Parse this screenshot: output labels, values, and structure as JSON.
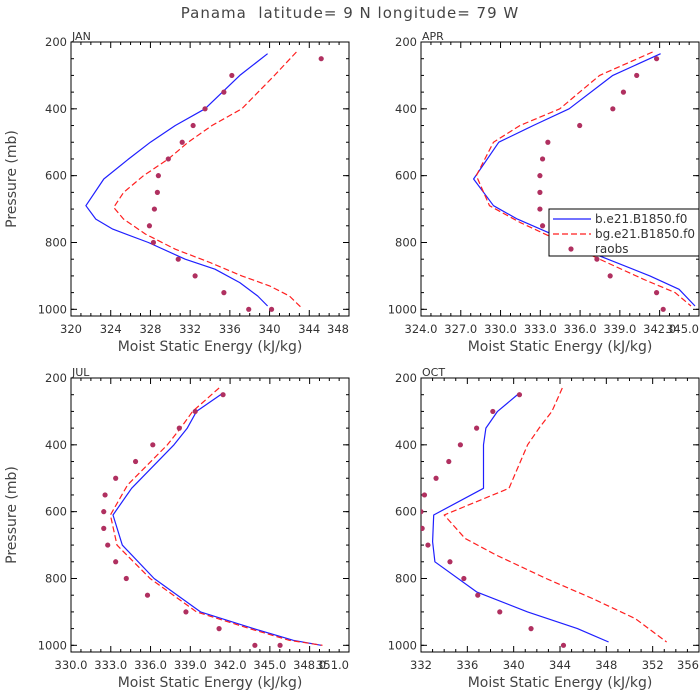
{
  "title": "Panama  latitude= 9 N longitude= 79 W",
  "colors": {
    "model": "#1f1fff",
    "bg_model": "#ff1f1f",
    "raobs": "#b03060",
    "axis": "#000000"
  },
  "chart_data": [
    {
      "type": "line",
      "panel": "JAN",
      "xlabel": "Moist Static Energy (kJ/kg)",
      "ylabel": "Pressure (mb)",
      "xlim": [
        320,
        348
      ],
      "ylim": [
        200,
        1020
      ],
      "y_reversed": true,
      "xticks": [
        320,
        324,
        328,
        332,
        336,
        340,
        344,
        348
      ],
      "xtick_labels": [
        "320",
        "324",
        "328",
        "332",
        "336",
        "340",
        "344",
        "348"
      ],
      "yticks": [
        200,
        400,
        600,
        800,
        1000
      ],
      "ytick_labels": [
        "200",
        "400",
        "600",
        "800",
        "1000"
      ],
      "series": [
        {
          "name": "b.e21.B1850.f0",
          "style": "solid",
          "color": "#1f1fff",
          "x": [
            339.8,
            337,
            333.5,
            330.5,
            328,
            325.8,
            323.3,
            321.5,
            322.5,
            324.2,
            327.8,
            331.5,
            334.5,
            337,
            338.8,
            339.8
          ],
          "y": [
            235,
            300,
            400,
            450,
            500,
            550,
            610,
            690,
            730,
            760,
            800,
            850,
            880,
            920,
            960,
            990
          ]
        },
        {
          "name": "bg.e21.B1850.f0",
          "style": "dashed",
          "color": "#ff1f1f",
          "x": [
            342.7,
            340.5,
            337.2,
            334.2,
            331.8,
            329.8,
            327.3,
            325.3,
            324.3,
            325.3,
            327.5,
            330.5,
            334,
            337.2,
            340,
            342,
            343.2
          ],
          "y": [
            230,
            300,
            400,
            450,
            500,
            550,
            600,
            650,
            695,
            730,
            775,
            820,
            860,
            900,
            930,
            960,
            995
          ]
        },
        {
          "name": "raobs",
          "style": "dots",
          "color": "#b03060",
          "x": [
            345.2,
            336.2,
            335.4,
            333.5,
            332.3,
            331.2,
            329.8,
            328.8,
            328.7,
            328.4,
            327.9,
            328.3,
            330.8,
            332.5,
            335.4,
            337.9,
            340.2
          ],
          "y": [
            250,
            300,
            350,
            400,
            450,
            500,
            550,
            600,
            650,
            700,
            750,
            800,
            850,
            900,
            950,
            1000,
            1000
          ]
        }
      ]
    },
    {
      "type": "line",
      "panel": "APR",
      "xlabel": "Moist Static Energy (kJ/kg)",
      "ylabel": "",
      "xlim": [
        324.03,
        345.0
      ],
      "ylim": [
        200,
        1020
      ],
      "y_reversed": true,
      "xticks": [
        324.03,
        327.03,
        330.03,
        333.03,
        336.03,
        339.03,
        342.03,
        345.0
      ],
      "xtick_labels": [
        "324.0",
        "327.0",
        "330.0",
        "333.0",
        "336.0",
        "339.0",
        "342.0",
        "345.0"
      ],
      "yticks": [
        200,
        400,
        600,
        800,
        1000
      ],
      "ytick_labels": [
        "200",
        "400",
        "600",
        "800",
        "1000"
      ],
      "legend": {
        "position": "right",
        "entries": [
          "b.e21.B1850.f0",
          "bg.e21.B1850.f0",
          "raobs"
        ]
      },
      "series": [
        {
          "name": "b.e21.B1850.f0",
          "style": "solid",
          "color": "#1f1fff",
          "x": [
            342.1,
            338.5,
            335.2,
            332.5,
            329.9,
            328,
            329.5,
            331.3,
            334.2,
            337.5,
            341.3,
            343.5,
            344.7
          ],
          "y": [
            235,
            300,
            400,
            450,
            500,
            610,
            690,
            730,
            780,
            840,
            900,
            940,
            990
          ]
        },
        {
          "name": "bg.e21.B1850.f0",
          "style": "dashed",
          "color": "#ff1f1f",
          "x": [
            341.5,
            337.5,
            334.5,
            331.5,
            329.5,
            328.2,
            329.2,
            331.5,
            334.2,
            337.5,
            340.8,
            343.2,
            344.4
          ],
          "y": [
            230,
            300,
            400,
            450,
            500,
            600,
            690,
            740,
            790,
            850,
            910,
            950,
            990
          ]
        },
        {
          "name": "raobs",
          "style": "dots",
          "color": "#b03060",
          "x": [
            341.8,
            340.3,
            339.3,
            338.5,
            336.0,
            333.6,
            333.2,
            333.0,
            333.0,
            333.0,
            333.2,
            334.1,
            336.0,
            337.3,
            338.3,
            341.8,
            342.3
          ],
          "y": [
            250,
            300,
            350,
            400,
            450,
            500,
            550,
            600,
            650,
            700,
            750,
            800,
            820,
            850,
            900,
            950,
            1000
          ]
        }
      ]
    },
    {
      "type": "line",
      "panel": "JUL",
      "xlabel": "Moist Static Energy (kJ/kg)",
      "ylabel": "Pressure (mb)",
      "xlim": [
        330.03,
        351.0
      ],
      "ylim": [
        200,
        1020
      ],
      "y_reversed": true,
      "xticks": [
        330.03,
        333.03,
        336.03,
        339.03,
        342.03,
        345.03,
        348.03,
        351.0
      ],
      "xtick_labels": [
        "330.0",
        "333.0",
        "336.0",
        "339.0",
        "342.0",
        "345.0",
        "348.0",
        "351.0"
      ],
      "yticks": [
        200,
        400,
        600,
        800,
        1000
      ],
      "ytick_labels": [
        "200",
        "400",
        "600",
        "800",
        "1000"
      ],
      "series": [
        {
          "name": "b.e21.B1850.f0",
          "style": "solid",
          "color": "#1f1fff",
          "x": [
            341.5,
            339.5,
            338.8,
            337.8,
            334.6,
            333.2,
            333.9,
            336.3,
            339.8,
            343.8,
            346.8,
            348.9
          ],
          "y": [
            245,
            300,
            350,
            400,
            530,
            610,
            700,
            800,
            900,
            950,
            985,
            1000
          ]
        },
        {
          "name": "bg.e21.B1850.f0",
          "style": "dashed",
          "color": "#ff1f1f",
          "x": [
            341.2,
            339.2,
            338.3,
            337.3,
            334.3,
            333.0,
            333.5,
            336.0,
            339.5,
            343.5,
            346.5,
            349.0
          ],
          "y": [
            230,
            300,
            350,
            400,
            520,
            610,
            700,
            800,
            900,
            950,
            985,
            1000
          ]
        },
        {
          "name": "raobs",
          "style": "dots",
          "color": "#b03060",
          "x": [
            341.5,
            339.4,
            338.2,
            336.2,
            334.9,
            333.4,
            332.6,
            332.5,
            332.5,
            332.8,
            333.4,
            334.2,
            335.8,
            338.7,
            341.2,
            343.9,
            345.8
          ],
          "y": [
            250,
            300,
            350,
            400,
            450,
            500,
            550,
            600,
            650,
            700,
            750,
            800,
            850,
            900,
            950,
            1000,
            1000
          ]
        }
      ]
    },
    {
      "type": "line",
      "panel": "OCT",
      "xlabel": "Moist Static Energy (kJ/kg)",
      "ylabel": "",
      "xlim": [
        332,
        356
      ],
      "ylim": [
        200,
        1020
      ],
      "y_reversed": true,
      "xticks": [
        332,
        336,
        340,
        344,
        348,
        352,
        356
      ],
      "xtick_labels": [
        "332",
        "336",
        "340",
        "344",
        "348",
        "352",
        "356"
      ],
      "yticks": [
        200,
        400,
        600,
        800,
        1000
      ],
      "ytick_labels": [
        "200",
        "400",
        "600",
        "800",
        "1000"
      ],
      "series": [
        {
          "name": "b.e21.B1850.f0",
          "style": "solid",
          "color": "#1f1fff",
          "x": [
            340.5,
            338.6,
            337.6,
            337.4,
            337.4,
            333.1,
            333.0,
            333.2,
            336.8,
            341.2,
            345.5,
            348.2
          ],
          "y": [
            245,
            300,
            350,
            400,
            530,
            610,
            690,
            750,
            840,
            900,
            950,
            990
          ]
        },
        {
          "name": "bg.e21.B1850.f0",
          "style": "dashed",
          "color": "#ff1f1f",
          "x": [
            344.2,
            343.3,
            342.2,
            341.2,
            339.6,
            334.0,
            335.8,
            338.5,
            342.8,
            346.8,
            350.5,
            353.2
          ],
          "y": [
            230,
            300,
            350,
            400,
            530,
            610,
            680,
            730,
            800,
            860,
            920,
            990
          ]
        },
        {
          "name": "raobs",
          "style": "dots",
          "color": "#b03060",
          "x": [
            340.5,
            338.2,
            336.8,
            335.4,
            334.4,
            333.3,
            332.3,
            332.0,
            332.1,
            332.6,
            334.5,
            335.7,
            336.9,
            338.8,
            341.5,
            344.3
          ],
          "y": [
            250,
            300,
            350,
            400,
            450,
            500,
            550,
            600,
            650,
            700,
            750,
            800,
            850,
            900,
            950,
            1000
          ]
        }
      ]
    }
  ]
}
